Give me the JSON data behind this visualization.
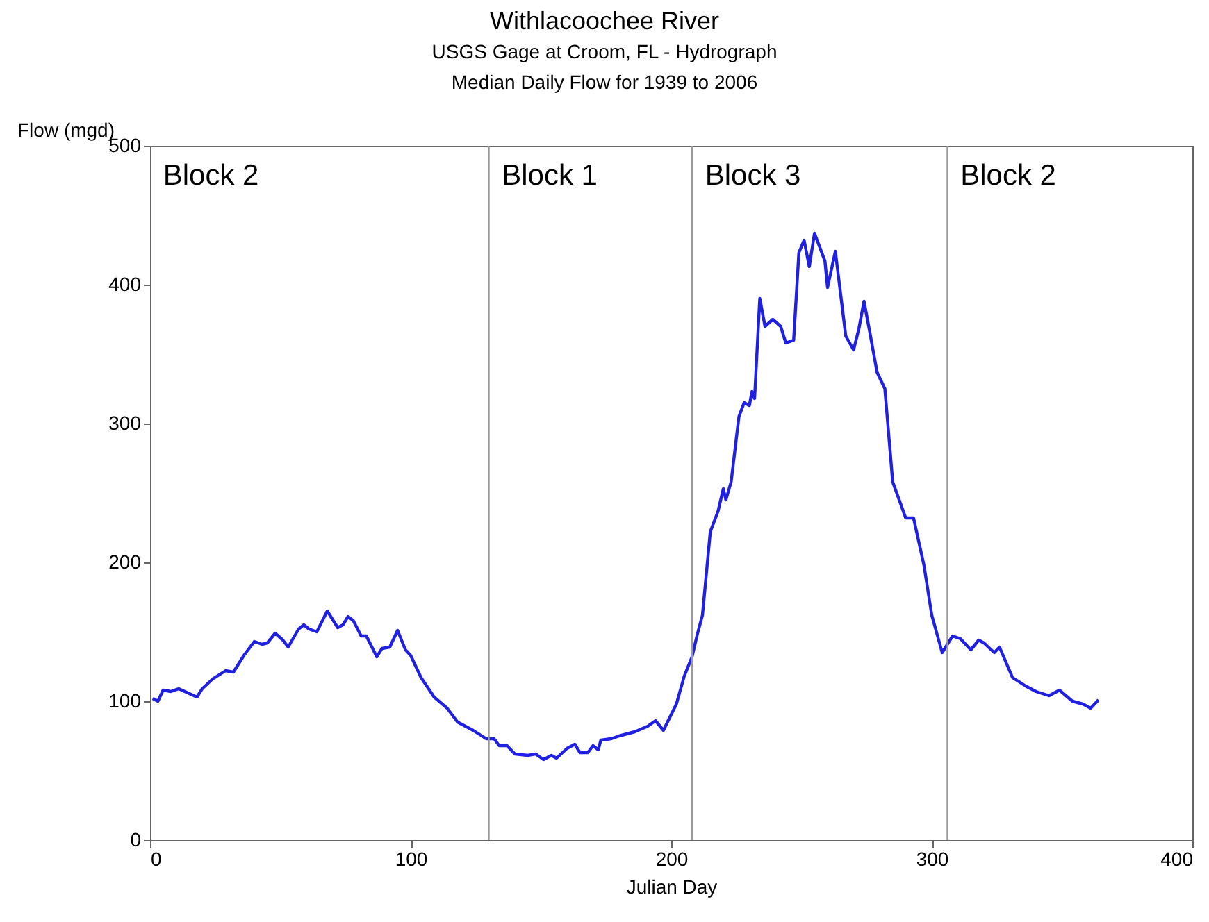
{
  "chart_data": {
    "type": "line",
    "title": "Withlacoochee River",
    "subtitle": "USGS Gage at Croom, FL - Hydrograph\nMedian Daily Flow for 1939 to 2006",
    "xlabel": "Julian Day",
    "ylabel": "Flow (mgd)",
    "x": [
      1,
      3,
      5,
      8,
      11,
      18,
      20,
      24,
      29,
      32,
      36,
      40,
      43,
      45,
      48,
      51,
      53,
      57,
      59,
      61,
      64,
      68,
      69,
      72,
      74,
      76,
      78,
      81,
      83,
      87,
      89,
      92,
      95,
      98,
      100,
      104,
      109,
      114,
      118,
      124,
      129,
      132,
      134,
      137,
      140,
      145,
      148,
      151,
      154,
      156,
      160,
      163,
      165,
      168,
      170,
      172,
      173,
      177,
      180,
      186,
      191,
      194,
      197,
      202,
      205,
      208,
      210,
      212,
      215,
      218,
      220,
      221,
      223,
      226,
      228,
      230,
      231,
      232,
      234,
      236,
      239,
      242,
      244,
      247,
      249,
      251,
      253,
      255,
      259,
      260,
      263,
      267,
      270,
      272,
      274,
      276,
      279,
      282,
      285,
      290,
      293,
      297,
      300,
      304,
      308,
      311,
      315,
      318,
      320,
      324,
      326,
      331,
      336,
      340,
      345,
      349,
      354,
      358,
      361,
      364
    ],
    "series": [
      {
        "color": "#2020e0",
        "values": [
          102,
          100,
          108,
          107,
          109,
          103,
          109,
          116,
          122,
          121,
          133,
          143,
          141,
          142,
          149,
          144,
          139,
          152,
          155,
          152,
          150,
          165,
          162,
          153,
          155,
          161,
          158,
          147,
          147,
          132,
          138,
          139,
          151,
          137,
          133,
          117,
          103,
          95,
          85,
          79,
          73,
          73,
          68,
          68,
          62,
          61,
          62,
          58,
          61,
          59,
          66,
          69,
          63,
          63,
          68,
          65,
          72,
          73,
          75,
          78,
          82,
          86,
          79,
          98,
          118,
          132,
          148,
          162,
          222,
          237,
          253,
          245,
          258,
          305,
          315,
          313,
          323,
          318,
          390,
          370,
          375,
          370,
          358,
          360,
          423,
          432,
          413,
          437,
          417,
          398,
          424,
          363,
          353,
          368,
          388,
          368,
          337,
          325,
          258,
          232,
          232,
          198,
          162,
          135,
          147,
          145,
          137,
          144,
          142,
          135,
          139,
          117,
          111,
          107,
          104,
          108,
          100,
          98,
          95,
          101
        ]
      }
    ],
    "xlim": [
      0,
      400
    ],
    "xticks": [
      0,
      100,
      200,
      300,
      400
    ],
    "ylim": [
      0,
      500
    ],
    "yticks": [
      0,
      100,
      200,
      300,
      400,
      500
    ],
    "grid": false,
    "ref_lines": [
      {
        "axis": "x",
        "value": 130,
        "color": "#999999"
      },
      {
        "axis": "x",
        "value": 208,
        "color": "#999999"
      },
      {
        "axis": "x",
        "value": 306,
        "color": "#999999"
      }
    ],
    "annotations": [
      "Block 2",
      "Block 1",
      "Block 3",
      "Block 2"
    ]
  }
}
